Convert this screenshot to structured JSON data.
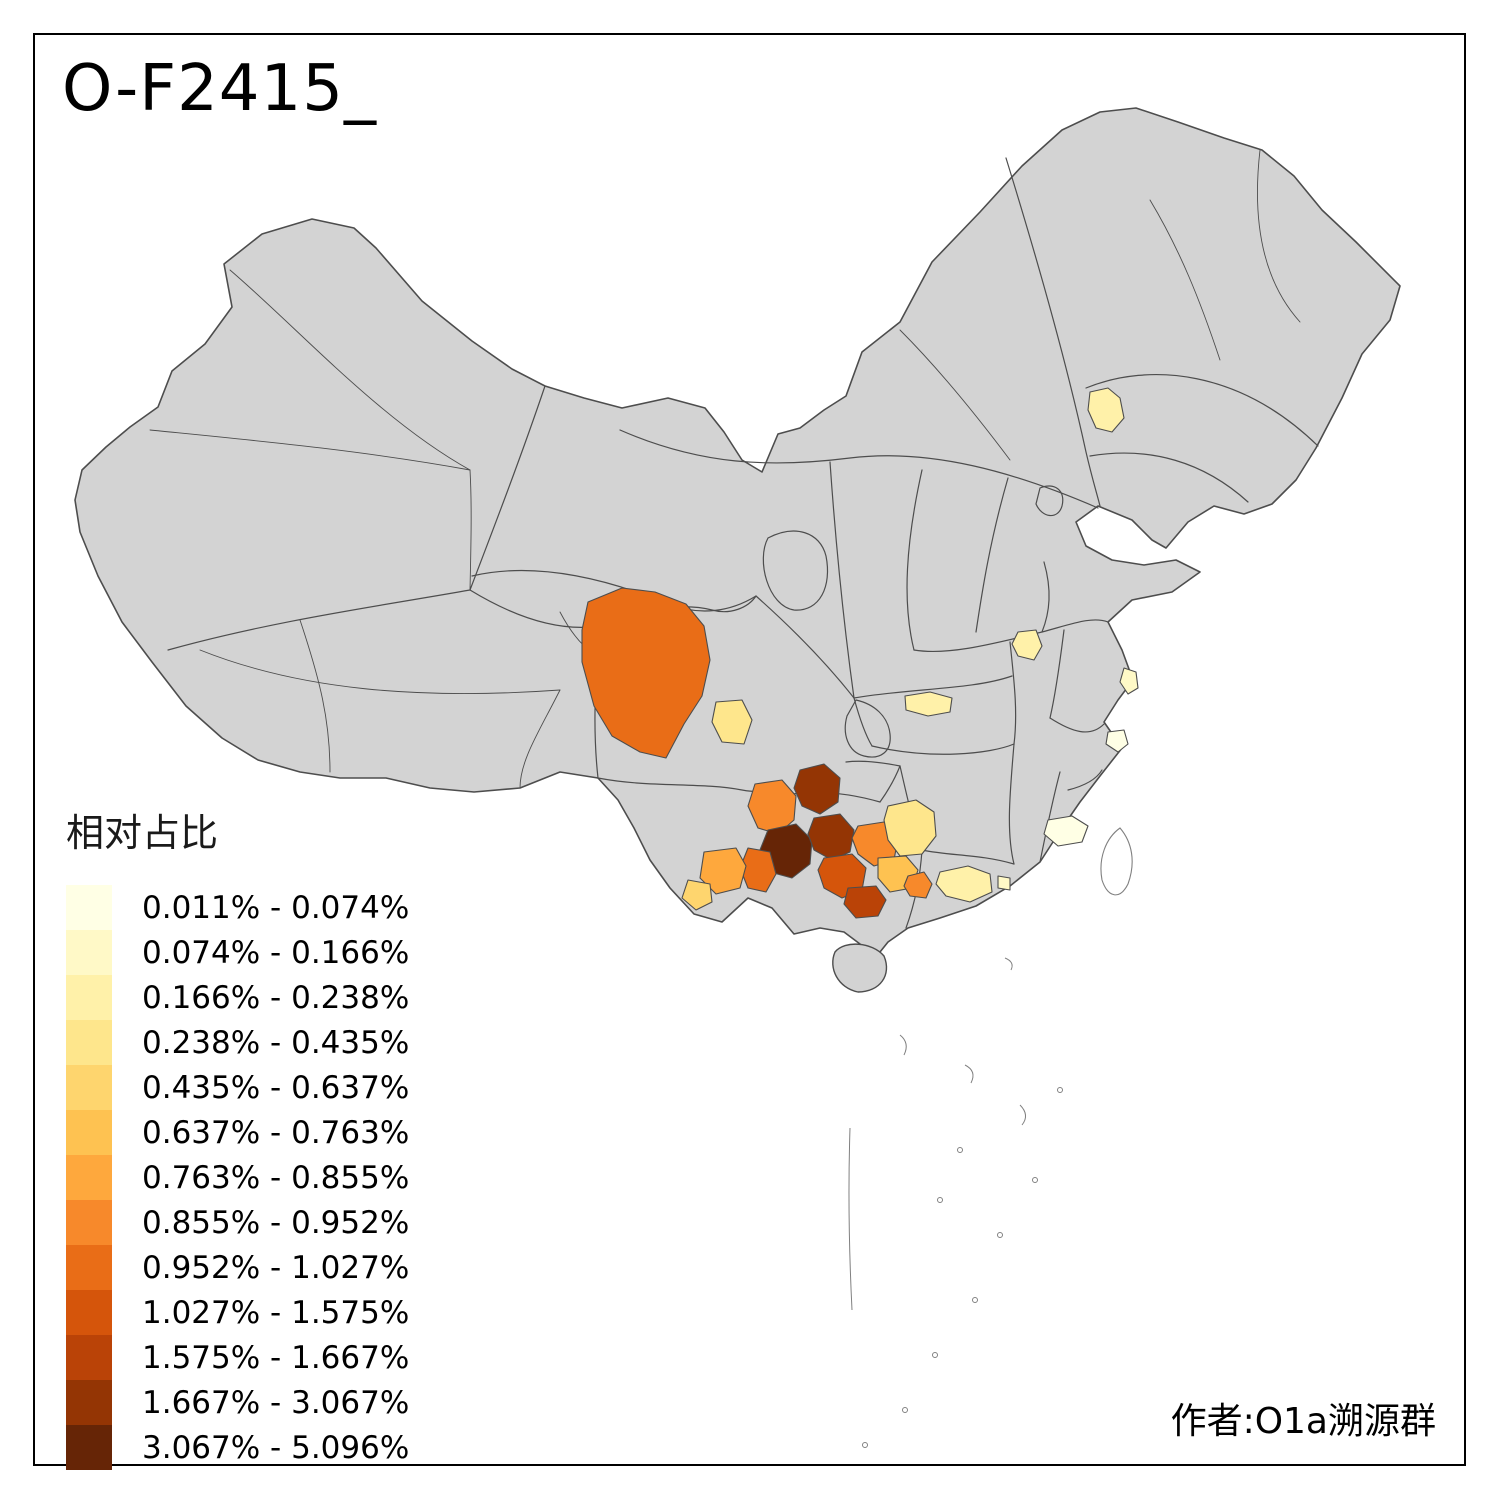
{
  "title": "O-F2415_",
  "attribution": "作者:O1a溯源群",
  "legend": {
    "title": "相对占比",
    "items": [
      {
        "label": "0.011% - 0.074%",
        "color": "#FFFFE5"
      },
      {
        "label": "0.074% - 0.166%",
        "color": "#FFF9C7"
      },
      {
        "label": "0.166% - 0.238%",
        "color": "#FFF1A9"
      },
      {
        "label": "0.238% - 0.435%",
        "color": "#FEE68C"
      },
      {
        "label": "0.435% - 0.637%",
        "color": "#FED56E"
      },
      {
        "label": "0.637% - 0.763%",
        "color": "#FEC251"
      },
      {
        "label": "0.763% - 0.855%",
        "color": "#FEA83D"
      },
      {
        "label": "0.855% - 0.952%",
        "color": "#F7892B"
      },
      {
        "label": "0.952% - 1.027%",
        "color": "#E96D17"
      },
      {
        "label": "1.027% - 1.575%",
        "color": "#D5550B"
      },
      {
        "label": "1.575% - 1.667%",
        "color": "#BA4307"
      },
      {
        "label": "1.667% - 3.067%",
        "color": "#943504"
      },
      {
        "label": "3.067% - 5.096%",
        "color": "#662506"
      }
    ]
  },
  "map": {
    "land_color": "#D3D3D3",
    "border_color": "#4D4D4D",
    "island_outline_color": "#808080",
    "background": "#FFFFFF",
    "regions": [
      {
        "id": "r01",
        "bucket": 8
      },
      {
        "id": "r02",
        "bucket": 3
      },
      {
        "id": "r03",
        "bucket": 2
      },
      {
        "id": "r04",
        "bucket": 2
      },
      {
        "id": "r05",
        "bucket": 1
      },
      {
        "id": "r06",
        "bucket": 0
      },
      {
        "id": "r07",
        "bucket": 2
      },
      {
        "id": "r08",
        "bucket": 0
      },
      {
        "id": "r09",
        "bucket": 2
      },
      {
        "id": "r10",
        "bucket": 1
      },
      {
        "id": "r11",
        "bucket": 7
      },
      {
        "id": "r12",
        "bucket": 11
      },
      {
        "id": "r13",
        "bucket": 12
      },
      {
        "id": "r14",
        "bucket": 11
      },
      {
        "id": "r15",
        "bucket": 8
      },
      {
        "id": "r16",
        "bucket": 6
      },
      {
        "id": "r17",
        "bucket": 4
      },
      {
        "id": "r18",
        "bucket": 9
      },
      {
        "id": "r19",
        "bucket": 10
      },
      {
        "id": "r20",
        "bucket": 7
      },
      {
        "id": "r21",
        "bucket": 3
      },
      {
        "id": "r22",
        "bucket": 5
      },
      {
        "id": "r23",
        "bucket": 7
      }
    ]
  }
}
